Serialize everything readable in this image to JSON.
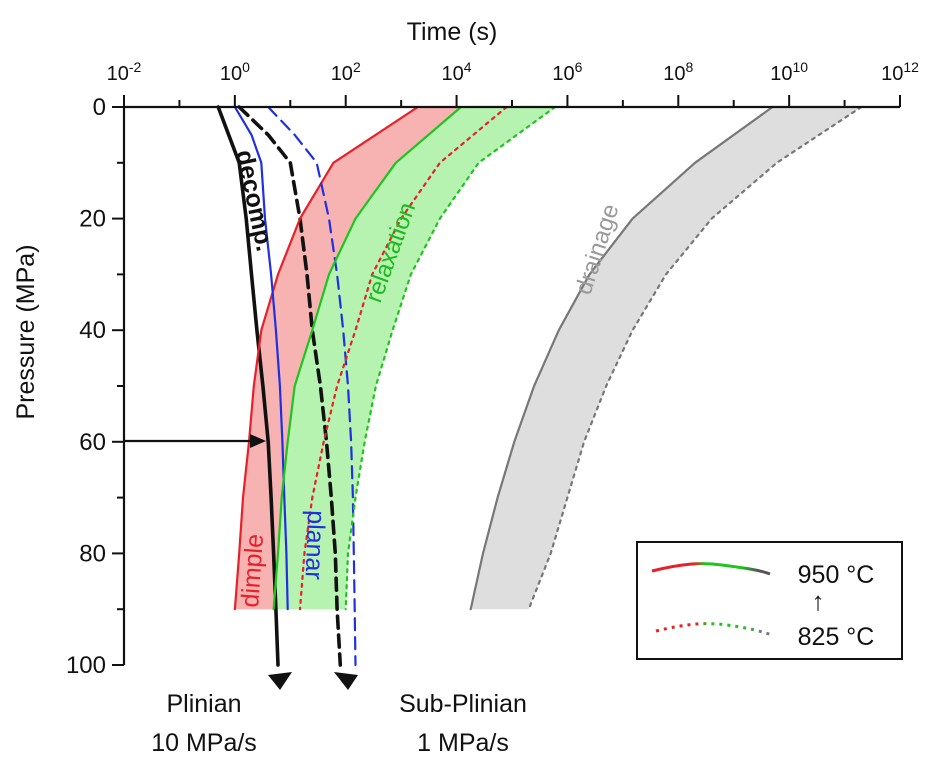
{
  "chart_data": {
    "type": "line",
    "xlabel": "Time (s)",
    "ylabel": "Pressure (MPa)",
    "x_scale": "log10",
    "xlim": [
      0.01,
      1000000000000
    ],
    "ylim": [
      0,
      100
    ],
    "y_inverted": true,
    "x_ticks": [
      {
        "base": "10",
        "exp": "-2",
        "value": 0.01
      },
      {
        "base": "10",
        "exp": "0",
        "value": 1
      },
      {
        "base": "10",
        "exp": "2",
        "value": 100
      },
      {
        "base": "10",
        "exp": "4",
        "value": 10000
      },
      {
        "base": "10",
        "exp": "6",
        "value": 1000000
      },
      {
        "base": "10",
        "exp": "8",
        "value": 100000000
      },
      {
        "base": "10",
        "exp": "10",
        "value": 10000000000
      },
      {
        "base": "10",
        "exp": "12",
        "value": 1000000000000
      }
    ],
    "y_ticks": [
      "0",
      "20",
      "40",
      "60",
      "80",
      "100"
    ],
    "colors": {
      "red": "#e8202a",
      "green": "#1fc41f",
      "blue": "#2030e0",
      "black": "#111111",
      "gray": "#777777",
      "red_fill": "#f6b3b1",
      "green_fill": "#b6f2b0",
      "gray_fill": "#dedede"
    },
    "series": [
      {
        "name": "decomp.",
        "style": "solid",
        "color": "black",
        "points": [
          [
            0.5,
            0
          ],
          [
            1.2,
            10
          ],
          [
            1.6,
            20
          ],
          [
            2.0,
            30
          ],
          [
            2.5,
            40
          ],
          [
            3.2,
            50
          ],
          [
            4,
            60
          ],
          [
            4.5,
            70
          ],
          [
            5,
            80
          ],
          [
            5.5,
            90
          ],
          [
            6,
            100
          ]
        ]
      },
      {
        "style": "dashed",
        "color": "black",
        "points": [
          [
            1.2,
            0
          ],
          [
            4,
            5
          ],
          [
            10,
            10
          ],
          [
            15,
            20
          ],
          [
            20,
            30
          ],
          [
            25,
            40
          ],
          [
            35,
            50
          ],
          [
            45,
            60
          ],
          [
            55,
            70
          ],
          [
            65,
            80
          ],
          [
            70,
            90
          ],
          [
            80,
            100
          ]
        ]
      },
      {
        "name": "dimple",
        "style": "solid",
        "color": "red",
        "temperature": "950 °C",
        "points": [
          [
            2000,
            0
          ],
          [
            60,
            10
          ],
          [
            15,
            20
          ],
          [
            6,
            30
          ],
          [
            3,
            40
          ],
          [
            2.2,
            50
          ],
          [
            1.8,
            60
          ],
          [
            1.4,
            70
          ],
          [
            1.2,
            80
          ],
          [
            1,
            90
          ]
        ]
      },
      {
        "name": "planar",
        "style": "solid",
        "color": "blue",
        "temperature": "950 °C",
        "points": [
          [
            1,
            0
          ],
          [
            2,
            5
          ],
          [
            3,
            10
          ],
          [
            3.5,
            20
          ],
          [
            4.5,
            30
          ],
          [
            5.5,
            40
          ],
          [
            6.5,
            50
          ],
          [
            7.2,
            60
          ],
          [
            7.8,
            70
          ],
          [
            8.5,
            80
          ],
          [
            9,
            90
          ]
        ]
      },
      {
        "name": "planar",
        "style": "dashed",
        "color": "blue",
        "temperature": "825 °C",
        "points": [
          [
            4,
            0
          ],
          [
            12,
            5
          ],
          [
            30,
            10
          ],
          [
            50,
            20
          ],
          [
            70,
            30
          ],
          [
            90,
            40
          ],
          [
            110,
            50
          ],
          [
            125,
            60
          ],
          [
            135,
            70
          ],
          [
            140,
            80
          ],
          [
            145,
            90
          ],
          [
            150,
            100
          ]
        ]
      },
      {
        "name": "relaxation",
        "style": "solid",
        "color": "green",
        "temperature": "950 °C",
        "points": [
          [
            12000,
            0
          ],
          [
            800,
            10
          ],
          [
            150,
            20
          ],
          [
            50,
            30
          ],
          [
            25,
            40
          ],
          [
            12,
            50
          ],
          [
            9,
            60
          ],
          [
            7,
            70
          ],
          [
            6,
            80
          ],
          [
            5,
            90
          ]
        ]
      },
      {
        "name": "relaxation",
        "style": "dotted",
        "color": "red",
        "temperature": "825 °C",
        "points": [
          [
            80000,
            0
          ],
          [
            5000,
            10
          ],
          [
            1000,
            20
          ],
          [
            300,
            30
          ],
          [
            150,
            40
          ],
          [
            70,
            50
          ],
          [
            40,
            60
          ],
          [
            25,
            70
          ],
          [
            18,
            80
          ],
          [
            15,
            90
          ]
        ]
      },
      {
        "name": "relaxation",
        "style": "dotted",
        "color": "green",
        "temperature": "825 °C",
        "points": [
          [
            600000,
            0
          ],
          [
            25000,
            10
          ],
          [
            5000,
            20
          ],
          [
            1500,
            30
          ],
          [
            700,
            40
          ],
          [
            350,
            50
          ],
          [
            220,
            60
          ],
          [
            150,
            70
          ],
          [
            110,
            80
          ],
          [
            100,
            90
          ]
        ]
      },
      {
        "name": "drainage",
        "style": "solid",
        "color": "gray",
        "temperature": "950 °C",
        "points": [
          [
            5000000000,
            0
          ],
          [
            200000000,
            10
          ],
          [
            15000000,
            20
          ],
          [
            2500000,
            30
          ],
          [
            700000,
            40
          ],
          [
            250000,
            50
          ],
          [
            110000,
            60
          ],
          [
            55000,
            70
          ],
          [
            30000,
            80
          ],
          [
            18000,
            90
          ]
        ]
      },
      {
        "name": "drainage",
        "style": "dotted",
        "color": "gray",
        "temperature": "825 °C",
        "points": [
          [
            200000000000,
            0
          ],
          [
            6000000000,
            10
          ],
          [
            400000000,
            20
          ],
          [
            60000000,
            30
          ],
          [
            15000000,
            40
          ],
          [
            5000000,
            50
          ],
          [
            2000000,
            60
          ],
          [
            1000000,
            70
          ],
          [
            500000,
            80
          ],
          [
            200000,
            90
          ]
        ]
      }
    ],
    "bands": [
      {
        "name": "dimple-relaxation-950",
        "upper": "dimple",
        "lower": "relaxation 950",
        "fill": "red_fill"
      },
      {
        "name": "relaxation-950-825",
        "fill": "green_fill"
      },
      {
        "name": "drainage-950-825",
        "fill": "gray_fill"
      }
    ],
    "curve_labels": {
      "decomp": "decomp.",
      "dimple": "dimple",
      "planar": "planar",
      "relaxation": "relaxation",
      "drainage": "drainage"
    },
    "annotations": {
      "arrow_pressure_mpa": 60,
      "plinian": {
        "line1": "Plinian",
        "line2": "10 MPa/s"
      },
      "subplinian": {
        "line1": "Sub-Plinian",
        "line2": "1 MPa/s"
      }
    },
    "legend": {
      "position": "bottom-right",
      "high_label": "950 °C",
      "low_label": "825 °C",
      "arrow": "↑"
    }
  }
}
